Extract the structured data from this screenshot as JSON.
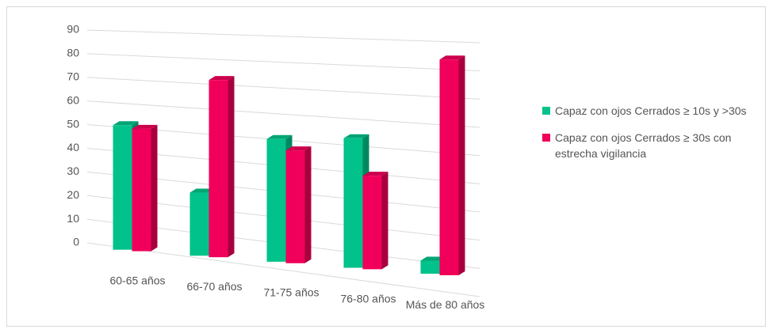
{
  "chart_data": {
    "type": "bar",
    "categories": [
      "60-65 años",
      "66-70 años",
      "71-75 años",
      "76-80 años",
      "Más de 80 años"
    ],
    "series": [
      {
        "name": "Capaz con ojos Cerrados  ≥ 10s y >30s",
        "color": "#00c28a",
        "values": [
          50,
          25,
          48,
          50,
          5
        ]
      },
      {
        "name": "Capaz con ojos Cerrados  ≥ 30s con estrecha vigilancia",
        "color": "#f0005a",
        "values": [
          49,
          70,
          44,
          36,
          82
        ]
      }
    ],
    "ylim": [
      0,
      90
    ],
    "yticks": [
      0,
      10,
      20,
      30,
      40,
      50,
      60,
      70,
      80,
      90
    ],
    "grid": true,
    "legend": "right"
  }
}
